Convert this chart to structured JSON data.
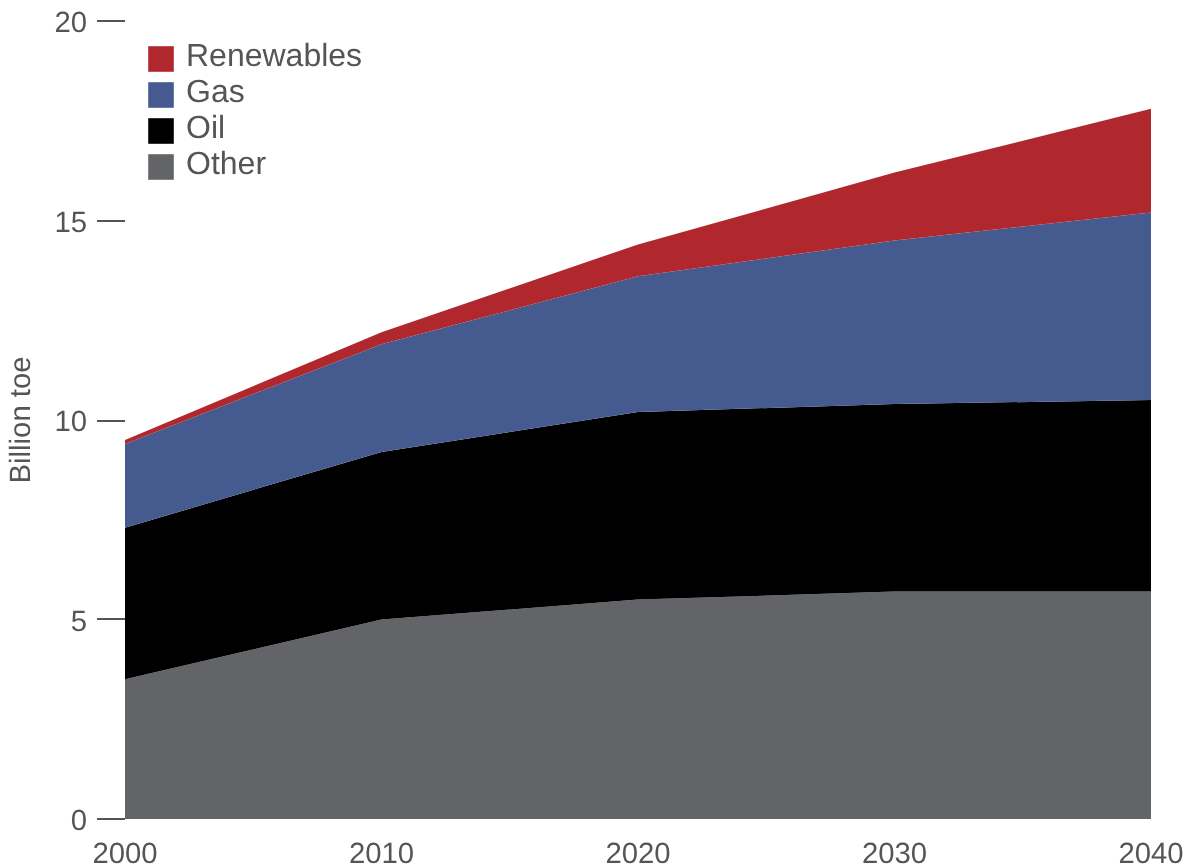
{
  "chart_data": {
    "type": "area",
    "stacked": true,
    "ylabel": "Billion toe",
    "x": [
      2000,
      2010,
      2020,
      2030,
      2040
    ],
    "xlim": [
      2000,
      2040
    ],
    "xticks": [
      2000,
      2010,
      2020,
      2030,
      2040
    ],
    "ylim": [
      0,
      20
    ],
    "yticks": [
      0,
      5,
      10,
      15,
      20
    ],
    "series": [
      {
        "name": "Other",
        "color": "#636467",
        "values": [
          3.5,
          5.0,
          5.5,
          5.7,
          5.7
        ]
      },
      {
        "name": "Oil",
        "color": "#000000",
        "values": [
          3.8,
          4.2,
          4.7,
          4.7,
          4.8
        ]
      },
      {
        "name": "Gas",
        "color": "#455a8e",
        "values": [
          2.1,
          2.7,
          3.4,
          4.1,
          4.7
        ]
      },
      {
        "name": "Renewables",
        "color": "#b0282e",
        "values": [
          0.1,
          0.3,
          0.8,
          1.7,
          2.6
        ]
      }
    ],
    "legend": "top left",
    "grid": false
  }
}
